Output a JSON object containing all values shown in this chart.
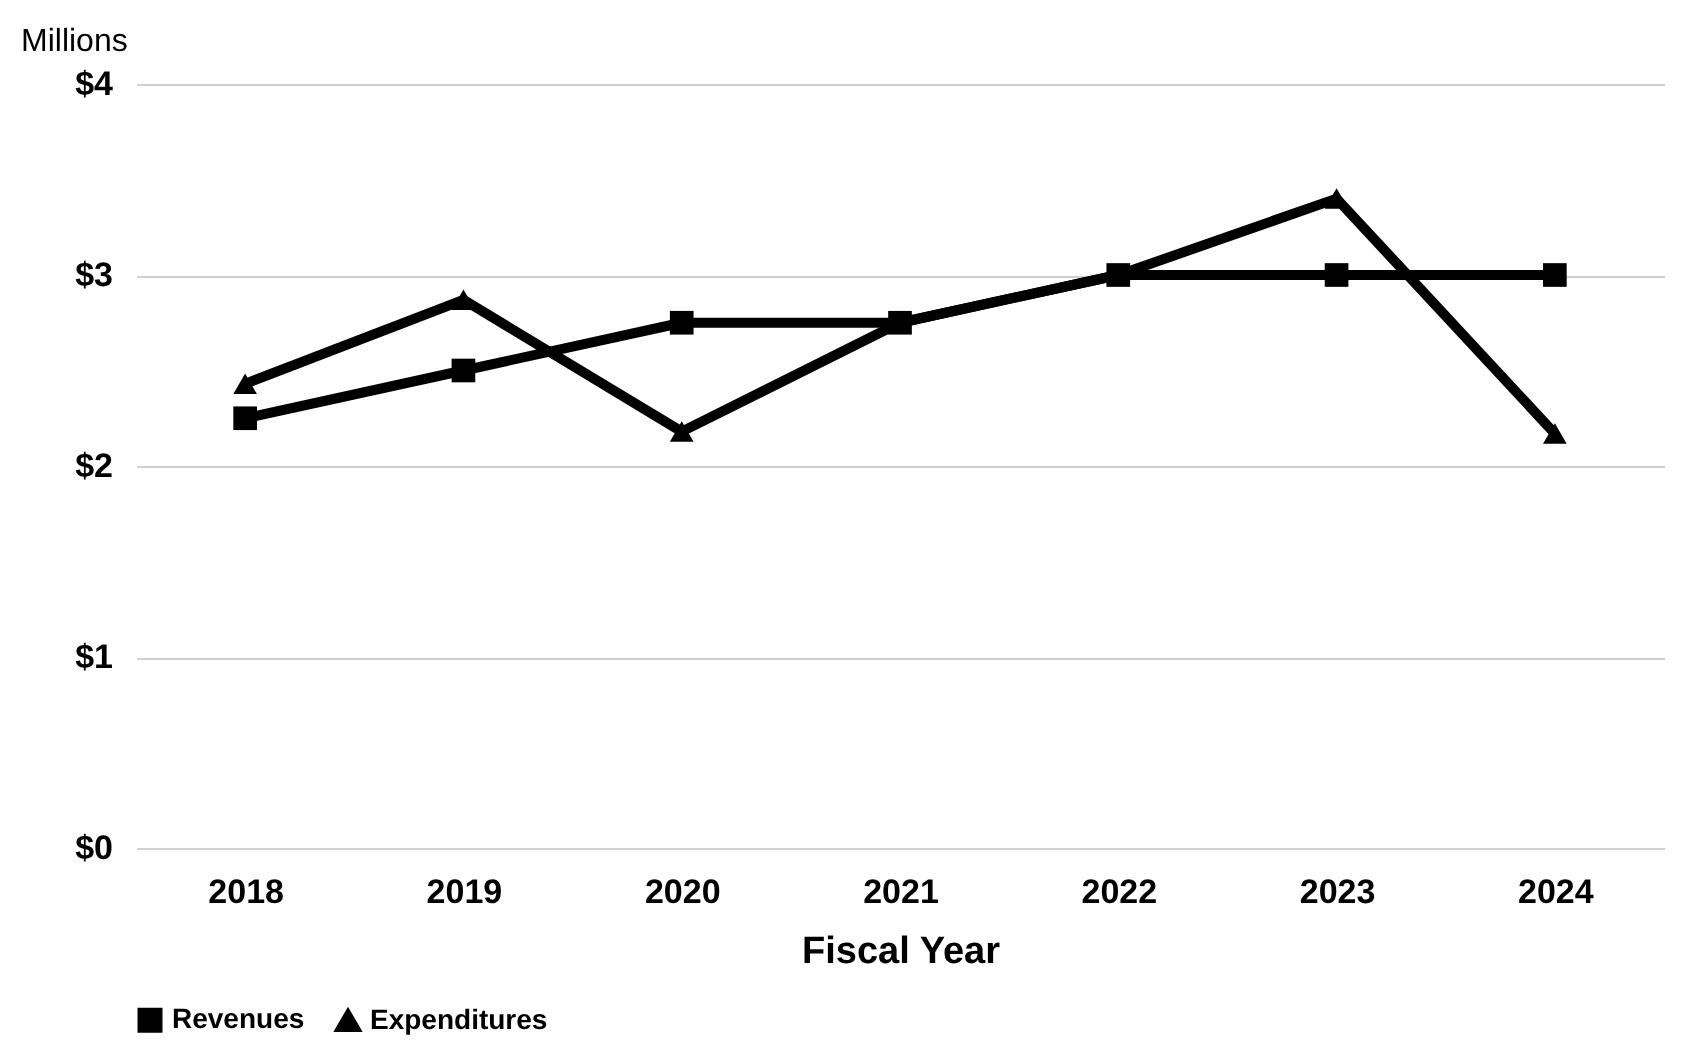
{
  "chart_data": {
    "type": "line",
    "xlabel": "Fiscal Year",
    "ylabel": "Millions",
    "categories": [
      "2018",
      "2019",
      "2020",
      "2021",
      "2022",
      "2023",
      "2024"
    ],
    "series": [
      {
        "name": "Revenues",
        "color": "#000000",
        "marker": "square",
        "values": [
          2.25,
          2.5,
          2.75,
          2.75,
          3,
          3,
          3
        ]
      },
      {
        "name": "Expenditures",
        "color": "#000000",
        "marker": "triangle",
        "values": [
          2.43,
          2.87,
          2.18,
          2.75,
          3,
          3.4,
          2.17
        ]
      }
    ],
    "ylim": [
      0,
      4
    ],
    "yticks": [
      {
        "value": 0,
        "label": "$0"
      },
      {
        "value": 1,
        "label": "$1"
      },
      {
        "value": 2,
        "label": "$2"
      },
      {
        "value": 3,
        "label": "$3"
      },
      {
        "value": 4,
        "label": "$4"
      }
    ],
    "grid": "y",
    "legend": "bottom",
    "line_style": "solid"
  }
}
